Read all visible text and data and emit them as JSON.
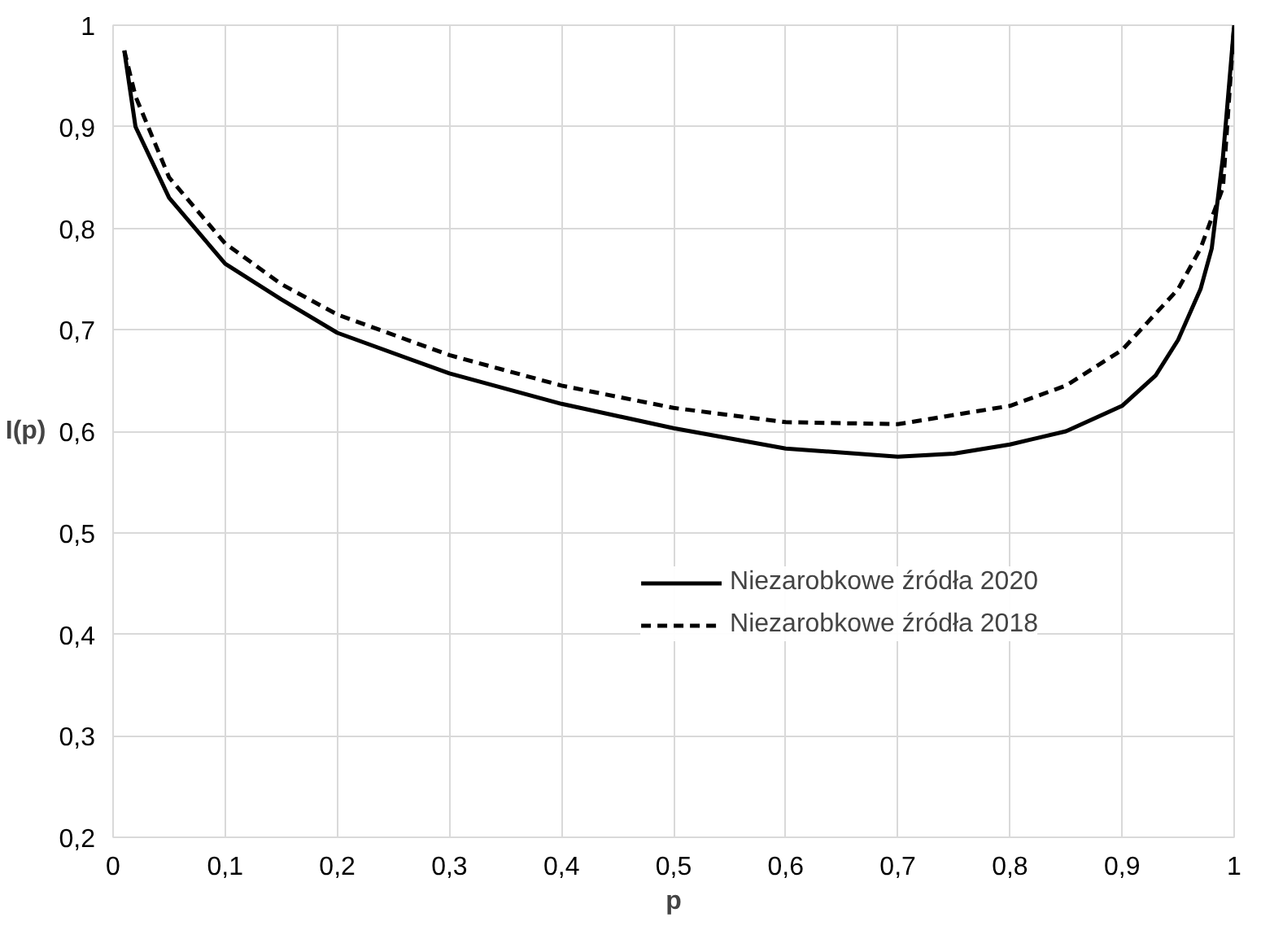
{
  "chart_data": {
    "type": "line",
    "xlabel": "p",
    "ylabel": "I(p)",
    "xlim": [
      0,
      1
    ],
    "ylim": [
      0.2,
      1
    ],
    "xticks": [
      0,
      {
        "value": 0.1,
        "label": "0,1"
      },
      {
        "value": 0.2,
        "label": "0,2"
      },
      {
        "value": 0.3,
        "label": "0,3"
      },
      {
        "value": 0.4,
        "label": "0,4"
      },
      {
        "value": 0.5,
        "label": "0,5"
      },
      {
        "value": 0.6,
        "label": "0,6"
      },
      {
        "value": 0.7,
        "label": "0,7"
      },
      {
        "value": 0.8,
        "label": "0,8"
      },
      {
        "value": 0.9,
        "label": "0,9"
      },
      1
    ],
    "yticks": [
      {
        "value": 0.2,
        "label": "0,2"
      },
      {
        "value": 0.3,
        "label": "0,3"
      },
      {
        "value": 0.4,
        "label": "0,4"
      },
      {
        "value": 0.5,
        "label": "0,5"
      },
      {
        "value": 0.6,
        "label": "0,6"
      },
      {
        "value": 0.7,
        "label": "0,7"
      },
      {
        "value": 0.8,
        "label": "0,8"
      },
      {
        "value": 0.9,
        "label": "0,9"
      },
      1
    ],
    "grid": true,
    "legend": "bottom right",
    "marker": "none",
    "series": [
      {
        "name": "Niezarobkowe źródła 2020",
        "color": "#000000",
        "line_style": "solid",
        "x": [
          0.01,
          0.02,
          0.05,
          0.1,
          0.15,
          0.2,
          0.3,
          0.4,
          0.5,
          0.6,
          0.7,
          0.75,
          0.8,
          0.85,
          0.9,
          0.93,
          0.95,
          0.97,
          0.98,
          0.99,
          1.0
        ],
        "values": [
          0.975,
          0.9,
          0.83,
          0.765,
          0.73,
          0.697,
          0.657,
          0.627,
          0.603,
          0.583,
          0.575,
          0.578,
          0.587,
          0.6,
          0.625,
          0.655,
          0.69,
          0.74,
          0.78,
          0.87,
          1.0
        ]
      },
      {
        "name": "Niezarobkowe źródła 2018",
        "color": "#000000",
        "line_style": "dashed",
        "x": [
          0.01,
          0.02,
          0.05,
          0.1,
          0.15,
          0.2,
          0.3,
          0.4,
          0.5,
          0.6,
          0.7,
          0.8,
          0.85,
          0.9,
          0.95,
          0.97,
          0.99,
          1.0
        ],
        "values": [
          0.975,
          0.93,
          0.85,
          0.785,
          0.745,
          0.715,
          0.675,
          0.645,
          0.623,
          0.609,
          0.607,
          0.625,
          0.645,
          0.68,
          0.74,
          0.78,
          0.84,
          1.0
        ]
      }
    ]
  }
}
